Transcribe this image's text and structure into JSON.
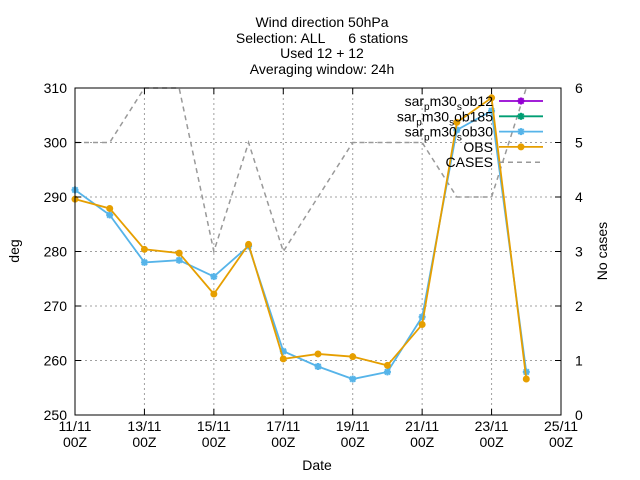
{
  "chart_data": {
    "type": "line",
    "title_lines": [
      "Wind direction 50hPa",
      "Selection: ALL      6 stations",
      "Used 12 + 12",
      "Averaging window: 24h"
    ],
    "xlabel": "Date",
    "ylabel": "deg",
    "y2label": "No cases",
    "x_ticks": [
      {
        "line1": "11/11",
        "line2": "00Z"
      },
      {
        "line1": "13/11",
        "line2": "00Z"
      },
      {
        "line1": "15/11",
        "line2": "00Z"
      },
      {
        "line1": "17/11",
        "line2": "00Z"
      },
      {
        "line1": "19/11",
        "line2": "00Z"
      },
      {
        "line1": "21/11",
        "line2": "00Z"
      },
      {
        "line1": "23/11",
        "line2": "00Z"
      },
      {
        "line1": "25/11",
        "line2": "00Z"
      }
    ],
    "x_range": [
      0,
      14
    ],
    "ylim": [
      250,
      310
    ],
    "y_ticks": [
      "250",
      "260",
      "270",
      "280",
      "290",
      "300",
      "310"
    ],
    "y2lim": [
      0,
      6
    ],
    "y2_ticks": [
      "0",
      "1",
      "2",
      "3",
      "4",
      "5",
      "6"
    ],
    "grid": true,
    "legend_position": "top-right",
    "series": [
      {
        "name": "sar_pm30_sob12",
        "legend_parts": [
          "sar",
          "p",
          "m30",
          "s",
          "ob12"
        ],
        "color": "#9400d3",
        "marker": "star",
        "axis": "y1",
        "x": [],
        "values": []
      },
      {
        "name": "sar_pm30_sob185",
        "legend_parts": [
          "sar",
          "p",
          "m30",
          "s",
          "ob185"
        ],
        "color": "#009e73",
        "marker": "star",
        "axis": "y1",
        "x": [],
        "values": []
      },
      {
        "name": "sar_pm30_sob30",
        "legend_parts": [
          "sar",
          "p",
          "m30",
          "s",
          "ob30"
        ],
        "color": "#56b4e9",
        "marker": "star",
        "axis": "y1",
        "x": [
          0,
          1,
          2,
          3,
          4,
          5,
          6,
          7,
          8,
          9,
          10,
          11,
          12,
          13
        ],
        "values": [
          291.3,
          286.7,
          278.0,
          278.4,
          275.4,
          281.0,
          261.7,
          258.9,
          256.6,
          257.9,
          268.0,
          302.3,
          305.8,
          257.9
        ]
      },
      {
        "name": "OBS",
        "legend_parts": [
          "OBS"
        ],
        "color": "#e69f00",
        "marker": "circle",
        "axis": "y1",
        "x": [
          0,
          1,
          2,
          3,
          4,
          5,
          6,
          7,
          8,
          9,
          10,
          11,
          12,
          13
        ],
        "values": [
          289.6,
          287.9,
          280.4,
          279.7,
          272.2,
          281.3,
          260.3,
          261.2,
          260.7,
          259.1,
          266.6,
          303.7,
          308.2,
          256.6
        ]
      },
      {
        "name": "CASES",
        "legend_parts": [
          "CASES"
        ],
        "color": "#999999",
        "marker": "none",
        "dashed": true,
        "axis": "y2",
        "x": [
          0,
          1,
          2,
          3,
          4,
          5,
          6,
          7,
          8,
          9,
          10,
          11,
          12,
          13
        ],
        "values": [
          5,
          5,
          6,
          6,
          3,
          5,
          3,
          4,
          5,
          5,
          5,
          4,
          4,
          6
        ]
      }
    ]
  }
}
